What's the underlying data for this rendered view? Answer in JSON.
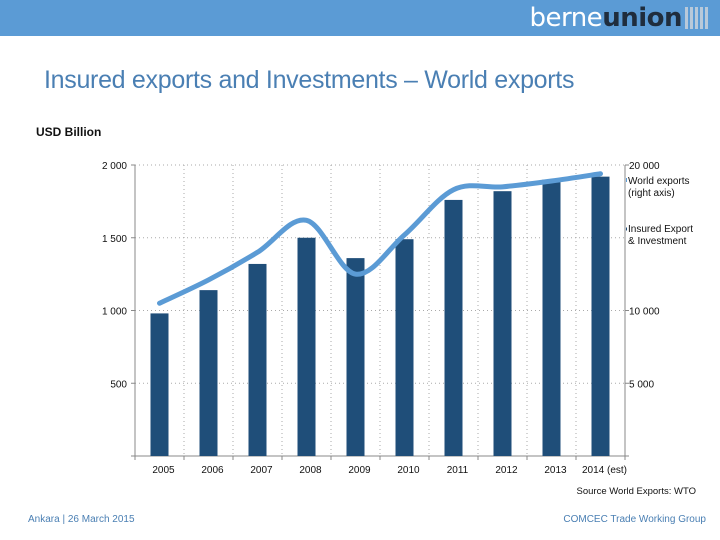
{
  "logo": {
    "part1": "berne",
    "part2": "union"
  },
  "title": "Insured exports and Investments – World exports",
  "unit_label": "USD Billion",
  "source": "Source World Exports: WTO",
  "footer": {
    "left": "Ankara | 26 March 2015",
    "right": "COMCEC Trade Working Group"
  },
  "colors": {
    "banner": "#5b9bd5",
    "bars": "#1f4e79",
    "line": "#5b9bd5",
    "title": "#4a7fb3",
    "footer": "#4a7fb3"
  },
  "chart_data": {
    "type": "bar",
    "categories": [
      "2005",
      "2006",
      "2007",
      "2008",
      "2009",
      "2010",
      "2011",
      "2012",
      "2013",
      "2014 (est)"
    ],
    "series": [
      {
        "name": "Insured Export & Investment",
        "type": "bar",
        "axis": "left",
        "values": [
          980,
          1140,
          1320,
          1500,
          1360,
          1490,
          1760,
          1820,
          1900,
          1920
        ]
      },
      {
        "name": "World exports (right axis)",
        "type": "line",
        "axis": "right",
        "values": [
          10500,
          12100,
          14000,
          16200,
          12500,
          15200,
          18300,
          18500,
          18900,
          19400
        ]
      }
    ],
    "ylim_left": [
      0,
      2000
    ],
    "ylim_right": [
      0,
      20000
    ],
    "yticks_left": [
      500,
      1000,
      1500,
      2000
    ],
    "yticks_left_labels": [
      "500",
      "1 000",
      "1 500",
      "2 000"
    ],
    "yticks_right": [
      5000,
      10000,
      20000
    ],
    "yticks_right_labels": [
      "5 000",
      "10 000",
      "20 000"
    ],
    "grid": true,
    "legend_position": "right"
  }
}
